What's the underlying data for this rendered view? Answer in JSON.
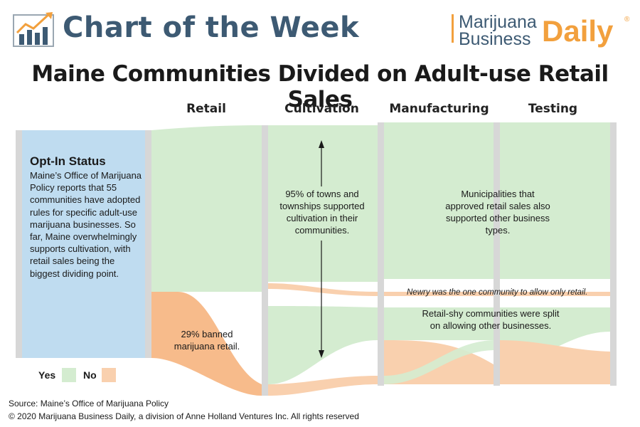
{
  "header": {
    "title": "Chart of the Week",
    "icon": "bar-chart-trend-icon",
    "publisher": {
      "line1": "Marijuana",
      "line2": "Business",
      "line3": "Daily",
      "registered": "®"
    }
  },
  "colors": {
    "yes": "#d4ecd0",
    "no": "#f9d0ae",
    "no_strong": "#f7bb8b",
    "opt_in": "#bfdcf0",
    "title_blue": "#3d5a73",
    "brand_orange": "#f2a03d",
    "bar_gray": "#d7d7d7"
  },
  "chart_data": {
    "type": "sankey",
    "title": "Maine Communities Divided on Adult-use Retail Sales",
    "stages": [
      "Retail",
      "Cultivation",
      "Manufacturing",
      "Testing"
    ],
    "first_column": {
      "heading": "Opt-In Status",
      "body": "Maine’s Office of Marijuana Policy reports that 55 communities have adopted rules for specific adult-use marijuana businesses. So far, Maine overwhelmingly supports cultivation, with retail sales being the biggest dividing point."
    },
    "categories": [
      "Yes",
      "No"
    ],
    "retail": {
      "yes_share": 0.71,
      "no_share": 0.29
    },
    "cultivation": {
      "yes_share": 0.95,
      "no_share": 0.05
    },
    "annotations": {
      "retail_no": "29% banned marijuana retail.",
      "cultivation": "95% of towns and townships supported cultivation in their communities.",
      "manufacturing_yes": "Municipalities that approved retail sales also supported other business types.",
      "newry": "Newry was the one community to allow only retail.",
      "retail_shy": "Retail-shy communities were split on allowing other businesses."
    },
    "legend": [
      {
        "label": "Yes",
        "color": "#d4ecd0"
      },
      {
        "label": "No",
        "color": "#f9d0ae"
      }
    ]
  },
  "footer": {
    "source": "Source: Maine’s Office of Marijuana Policy",
    "copyright": "© 2020 Marijuana Business Daily, a division of Anne Holland Ventures Inc. All rights reserved"
  }
}
